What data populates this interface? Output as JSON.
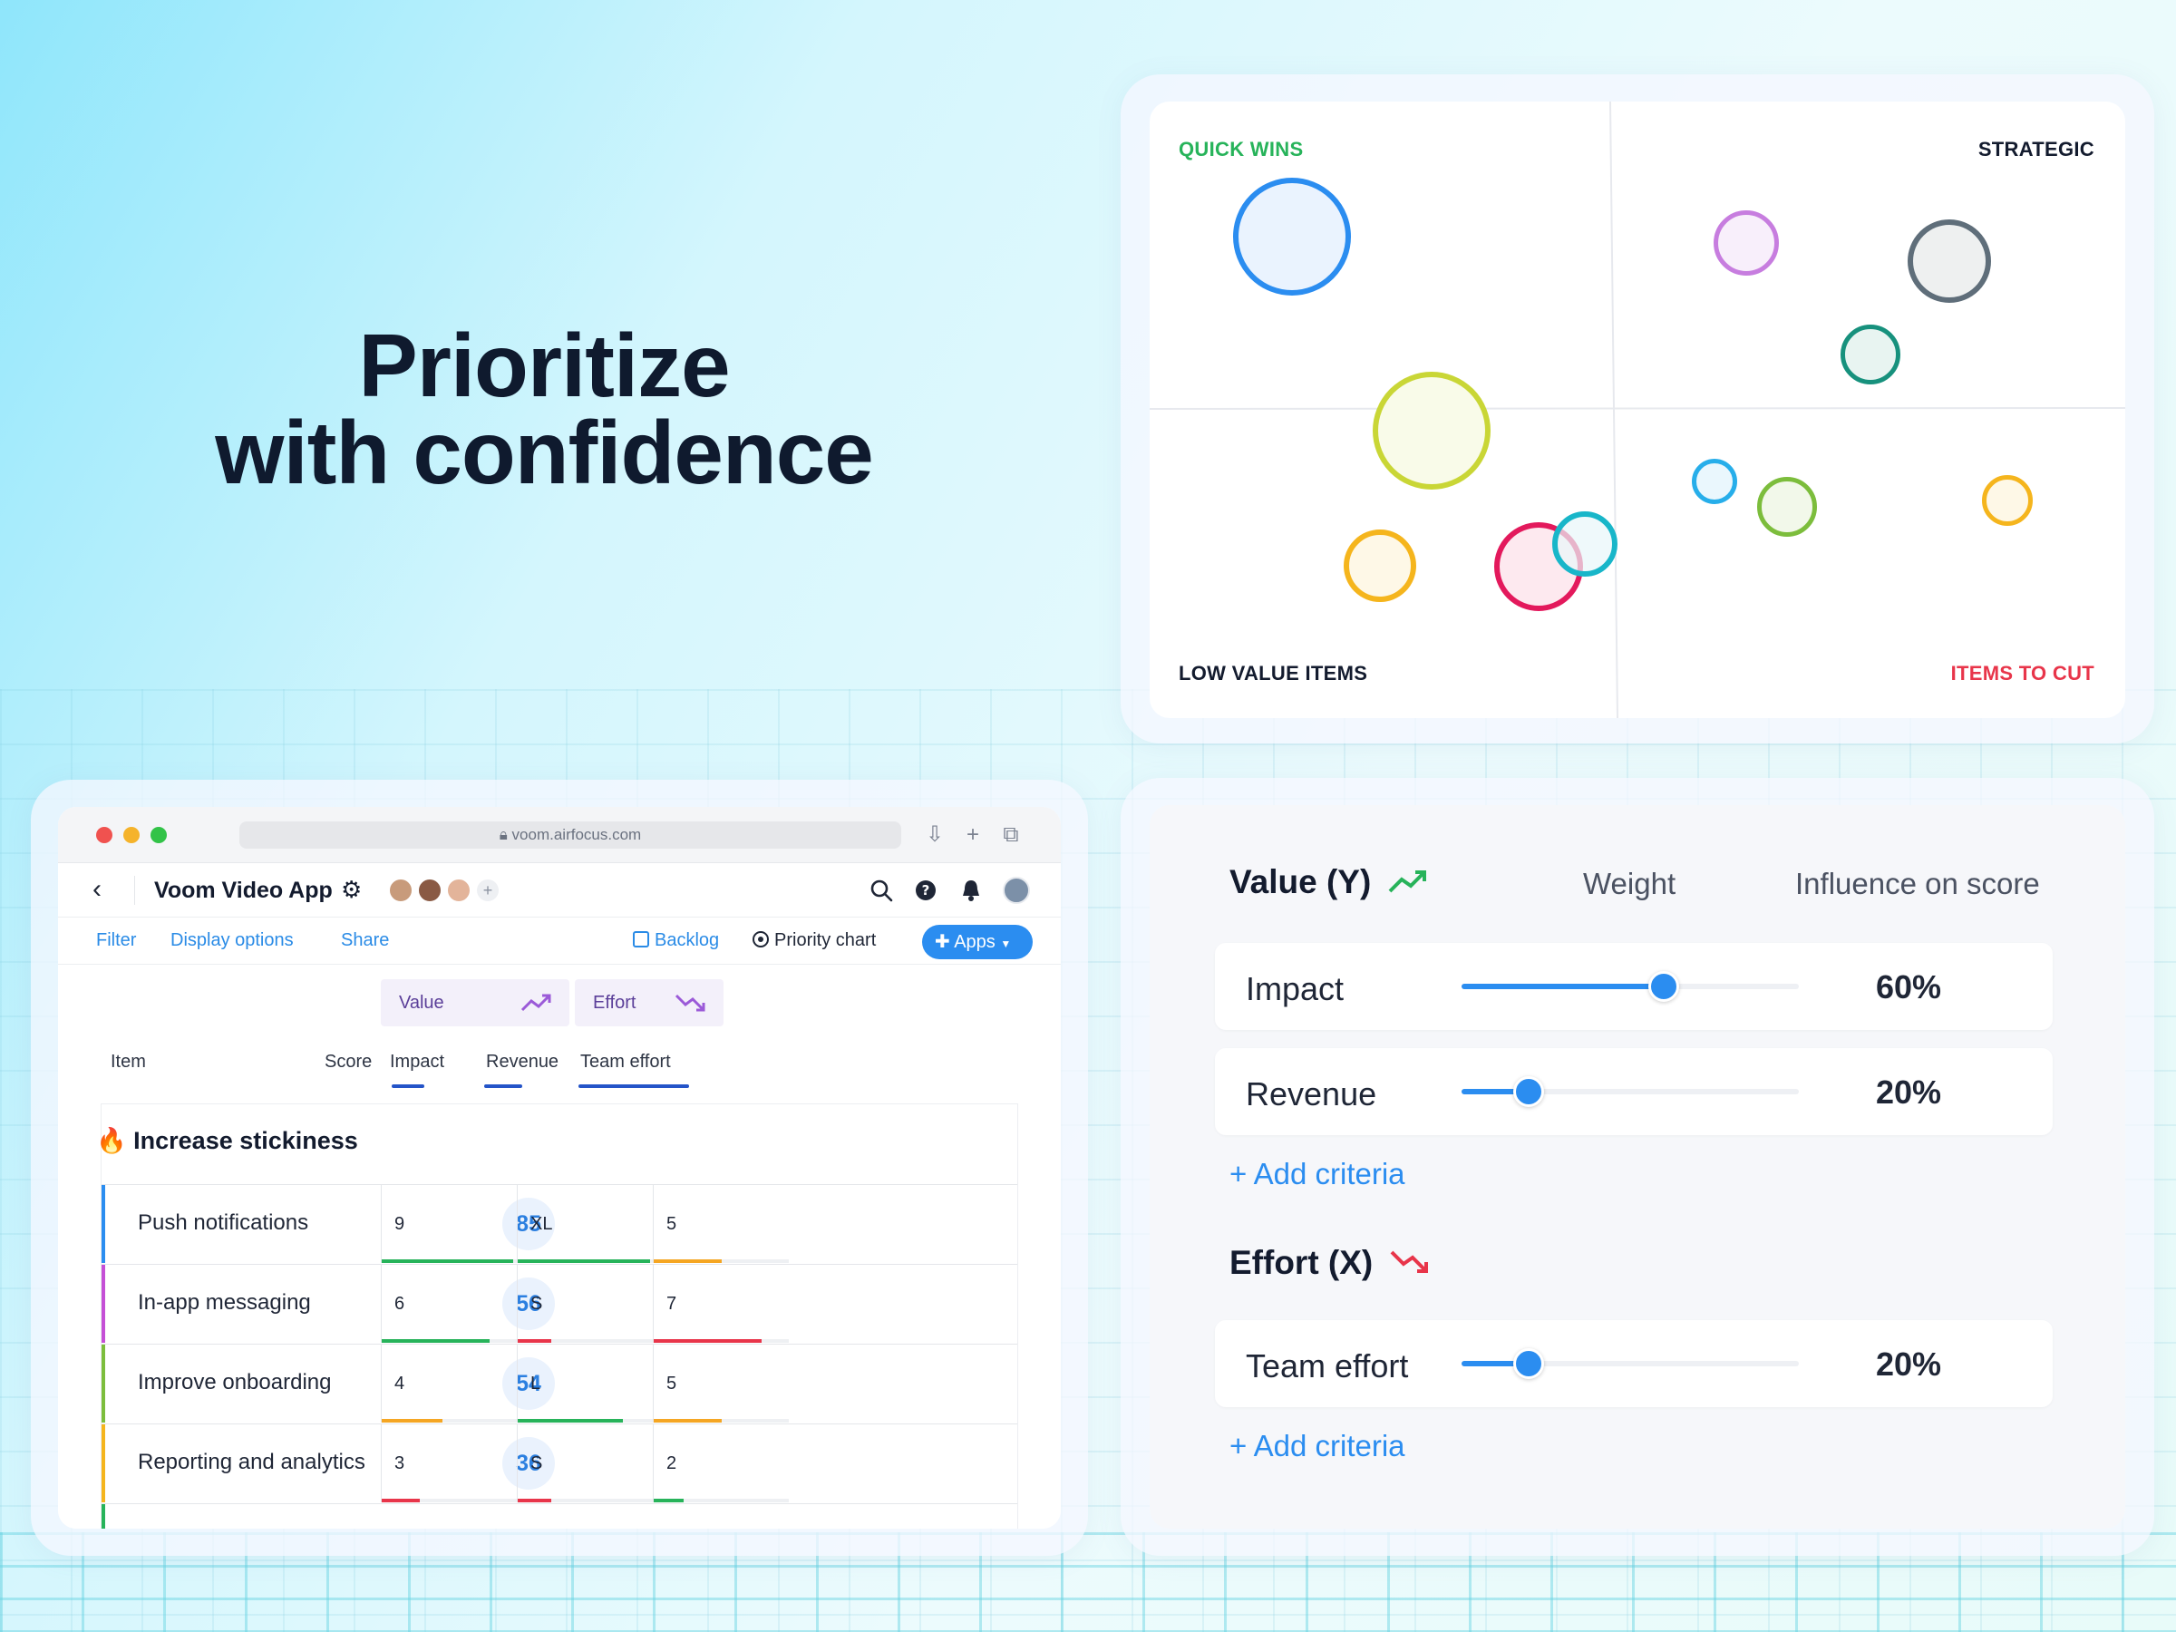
{
  "headline": {
    "line1": "Prioritize",
    "line2": "with confidence"
  },
  "matrix": {
    "quadrants": {
      "top_left": {
        "label": "QUICK WINS",
        "color": "#27b35a"
      },
      "top_right": {
        "label": "STRATEGIC",
        "color": "#131b2e"
      },
      "bottom_left": {
        "label": "LOW VALUE ITEMS",
        "color": "#131b2e"
      },
      "bottom_right": {
        "label": "ITEMS TO CUT",
        "color": "#e8354a"
      }
    },
    "bubble_colors": [
      "#2b8df0",
      "#c77ddf",
      "#5f6e7a",
      "#17917d",
      "#c9d636",
      "#27aeea",
      "#7cbd3c",
      "#f5b51d",
      "#f5b51d",
      "#e3195c",
      "#18b6c9"
    ]
  },
  "window": {
    "url": "voom.airfocus.com",
    "app_title": "Voom Video App",
    "back_glyph": "‹",
    "gear_glyph": "⚙",
    "avatar_add": "+",
    "nav": {
      "filter": "Filter",
      "display_options": "Display options",
      "share": "Share",
      "backlog": "Backlog",
      "priority_chart": "Priority chart",
      "apps": "Apps"
    },
    "groups": {
      "value": "Value",
      "effort": "Effort"
    },
    "columns": {
      "item": "Item",
      "score": "Score",
      "impact": "Impact",
      "revenue": "Revenue",
      "team_effort": "Team effort"
    },
    "section": {
      "emoji": "🔥",
      "title": "Increase stickiness"
    },
    "rows": [
      {
        "name": "Push notifications",
        "score": "85",
        "impact": "9",
        "revenue": "XL",
        "effort": "5",
        "bar_color": "#2b8df0"
      },
      {
        "name": "In-app messaging",
        "score": "56",
        "impact": "6",
        "revenue": "S",
        "effort": "7",
        "bar_color": "#c54fd6"
      },
      {
        "name": "Improve onboarding",
        "score": "54",
        "impact": "4",
        "revenue": "L",
        "effort": "5",
        "bar_color": "#7cbd3c"
      },
      {
        "name": "Reporting and analytics",
        "score": "36",
        "impact": "3",
        "revenue": "S",
        "effort": "2",
        "bar_color": "#f5b51d"
      }
    ]
  },
  "settings": {
    "value_title": "Value (Y)",
    "weight_label": "Weight",
    "influence_label": "Influence on score",
    "value_criteria": [
      {
        "name": "Impact",
        "percent": "60%",
        "level": 0.6
      },
      {
        "name": "Revenue",
        "percent": "20%",
        "level": 0.2
      }
    ],
    "add_criteria": "+ Add criteria",
    "effort_title": "Effort (X)",
    "effort_criteria": [
      {
        "name": "Team effort",
        "percent": "20%",
        "level": 0.2
      }
    ]
  }
}
